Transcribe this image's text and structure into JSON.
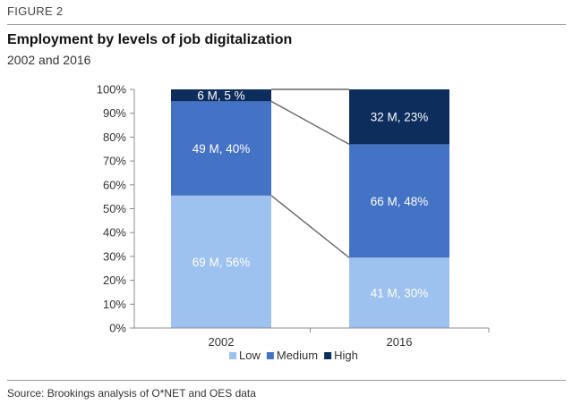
{
  "figure_label": "FIGURE 2",
  "source": "Source: Brookings analysis of O*NET and OES data",
  "colors": {
    "Low": "#9ec2ef",
    "Medium": "#4472c4",
    "High": "#0d2d5c",
    "axis": "#8c8c8c",
    "connector": "#666666"
  },
  "chart_data": {
    "type": "bar",
    "stacked": true,
    "title": "Employment by levels of job digitalization",
    "subtitle": "2002 and 2016",
    "categories": [
      "2002",
      "2016"
    ],
    "ylim": [
      0,
      100
    ],
    "yticks": [
      0,
      10,
      20,
      30,
      40,
      50,
      60,
      70,
      80,
      90,
      100
    ],
    "ytick_labels": [
      "0%",
      "10%",
      "20%",
      "30%",
      "40%",
      "50%",
      "60%",
      "70%",
      "80%",
      "90%",
      "100%"
    ],
    "legend_position": "bottom",
    "connector_lines": true,
    "series": [
      {
        "name": "Low",
        "values": [
          55.5,
          29.5
        ],
        "labels": [
          "69 M,  56%",
          "41 M,   30%"
        ]
      },
      {
        "name": "Medium",
        "values": [
          39.5,
          47.5
        ],
        "labels": [
          "49 M,  40%",
          "66 M,   48%"
        ]
      },
      {
        "name": "High",
        "values": [
          5,
          23
        ],
        "labels": [
          "6 M, 5 %",
          "32 M,   23%"
        ]
      }
    ]
  }
}
